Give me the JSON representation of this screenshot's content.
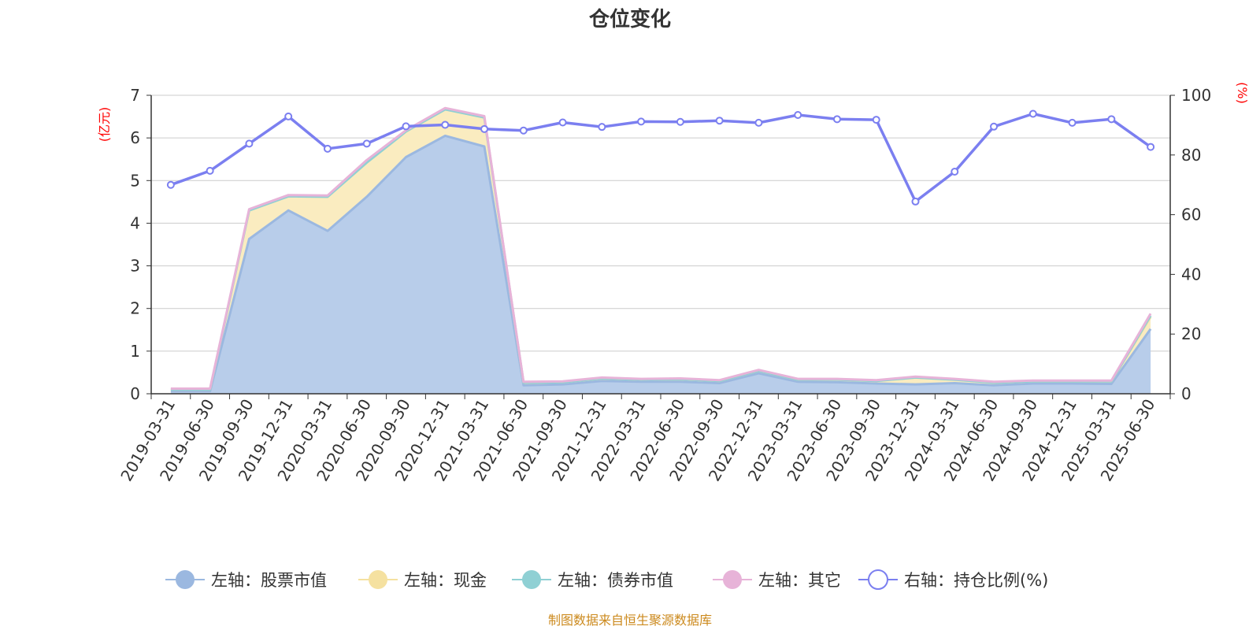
{
  "chart_data": {
    "type": "area",
    "title": "仓位变化",
    "left_unit": "(亿元)",
    "right_unit": "(%)",
    "source": "制图数据来自恒生聚源数据库",
    "x": [
      "2019-03-31",
      "2019-06-30",
      "2019-09-30",
      "2019-12-31",
      "2020-03-31",
      "2020-06-30",
      "2020-09-30",
      "2020-12-31",
      "2021-03-31",
      "2021-06-30",
      "2021-09-30",
      "2021-12-31",
      "2022-03-31",
      "2022-06-30",
      "2022-09-30",
      "2022-12-31",
      "2023-03-31",
      "2023-06-30",
      "2023-09-30",
      "2023-12-31",
      "2024-03-31",
      "2024-06-30",
      "2024-09-30",
      "2024-12-31",
      "2025-03-31",
      "2025-06-30"
    ],
    "y_left": {
      "min": 0,
      "max": 7,
      "ticks": [
        "0",
        "1",
        "2",
        "3",
        "4",
        "5",
        "6",
        "7"
      ]
    },
    "y_right": {
      "min": 0,
      "max": 100,
      "ticks": [
        "0",
        "20",
        "40",
        "60",
        "80",
        "100"
      ]
    },
    "series": [
      {
        "name": "左轴：股票市值",
        "axis": "left",
        "stacked": true,
        "color": "#9bb8e0",
        "fill": "#b8cdea",
        "values": [
          0.06,
          0.06,
          3.63,
          4.3,
          3.82,
          4.62,
          5.55,
          6.05,
          5.8,
          0.2,
          0.22,
          0.3,
          0.28,
          0.28,
          0.25,
          0.48,
          0.28,
          0.27,
          0.24,
          0.22,
          0.25,
          0.2,
          0.24,
          0.24,
          0.23,
          1.52
        ]
      },
      {
        "name": "左轴：现金",
        "axis": "left",
        "stacked": true,
        "color": "#f5e1a0",
        "fill": "#faecc0",
        "values": [
          0.04,
          0.04,
          0.67,
          0.33,
          0.8,
          0.8,
          0.6,
          0.62,
          0.68,
          0.06,
          0.05,
          0.06,
          0.05,
          0.06,
          0.05,
          0.06,
          0.05,
          0.06,
          0.06,
          0.16,
          0.08,
          0.06,
          0.05,
          0.05,
          0.06,
          0.28
        ]
      },
      {
        "name": "左轴：债券市值",
        "axis": "left",
        "stacked": true,
        "color": "#8fd0d4",
        "fill": "#b3e2e4",
        "values": [
          0,
          0,
          0,
          0,
          0,
          0,
          0,
          0,
          0,
          0,
          0,
          0,
          0,
          0,
          0,
          0,
          0,
          0,
          0,
          0,
          0,
          0,
          0,
          0,
          0,
          0.03
        ]
      },
      {
        "name": "左轴：其它",
        "axis": "left",
        "stacked": true,
        "color": "#e7b3d8",
        "fill": "#f0cce6",
        "values": [
          0.02,
          0.02,
          0.03,
          0.03,
          0.03,
          0.06,
          0.03,
          0.03,
          0.03,
          0.02,
          0.02,
          0.02,
          0.02,
          0.02,
          0.02,
          0.02,
          0.02,
          0.02,
          0.02,
          0.02,
          0.02,
          0.02,
          0.02,
          0.02,
          0.02,
          0.05
        ]
      },
      {
        "name": "右轴：持仓比例(%)",
        "axis": "right",
        "type": "line",
        "color": "#7b7ff0",
        "values": [
          70.0,
          74.7,
          83.8,
          92.9,
          82.1,
          83.8,
          89.6,
          90.1,
          88.7,
          88.2,
          90.9,
          89.4,
          91.2,
          91.1,
          91.5,
          90.8,
          93.4,
          92.0,
          91.8,
          64.4,
          74.4,
          89.5,
          93.8,
          90.8,
          92.0,
          82.7
        ]
      }
    ],
    "legend_position": "bottom",
    "grid": true
  }
}
